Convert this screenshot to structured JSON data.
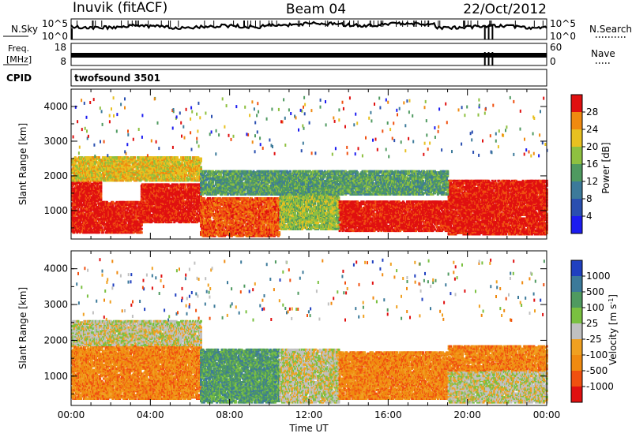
{
  "header": {
    "station": "Inuvik (fitACF)",
    "beam": "Beam 04",
    "date": "22/Oct/2012"
  },
  "panels": {
    "noise": {
      "left_label": "N.Sky",
      "tick_top": "10^5",
      "tick_bottom": "10^0",
      "right_tick_top": "10^5",
      "right_tick_bottom": "10^0",
      "right_label": "N.Search"
    },
    "freq": {
      "left_label_1": "Freq.",
      "left_label_2": "[MHz]",
      "tick_top": "18",
      "tick_bottom": "8",
      "right_tick_top": "60",
      "right_tick_bottom": "0",
      "right_label": "Nave"
    },
    "cpid": {
      "label": "CPID",
      "value": "twofsound 3501"
    }
  },
  "colors": {
    "trace": "#000000",
    "power_scale": [
      "#1c1cf0",
      "#2a4fb0",
      "#3c7a9a",
      "#4f9a60",
      "#8ec040",
      "#e8c020",
      "#f08a10",
      "#f05010",
      "#e01010"
    ],
    "velocity_scale": [
      "#e01010",
      "#f05010",
      "#f08a10",
      "#f0a020",
      "#c0c0c0",
      "#7ac040",
      "#4f9a60",
      "#3c7a9a",
      "#2040c0"
    ]
  },
  "chart_data": [
    {
      "type": "heatmap",
      "name": "power-panel",
      "ylabel": "Slant Range [km]",
      "yticks": [
        "1000",
        "2000",
        "3000",
        "4000"
      ],
      "ylim": [
        180,
        4500
      ],
      "colorbar": {
        "label": "Power [dB]",
        "ticks": [
          "4",
          "8",
          "12",
          "16",
          "20",
          "24",
          "28"
        ],
        "range": [
          0,
          32
        ]
      },
      "bands": [
        {
          "t0": 0.0,
          "t1": 1.5,
          "r0": 400,
          "r1": 1900,
          "level": 8
        },
        {
          "t0": 1.5,
          "t1": 3.5,
          "r0": 400,
          "r1": 1300,
          "level": 8
        },
        {
          "t0": 3.5,
          "t1": 6.5,
          "r0": 700,
          "r1": 1800,
          "level": 8
        },
        {
          "t0": 6.5,
          "t1": 10.5,
          "r0": 300,
          "r1": 1400,
          "level": 7
        },
        {
          "t0": 10.5,
          "t1": 13.5,
          "r0": 500,
          "r1": 1800,
          "level": 4
        },
        {
          "t0": 13.5,
          "t1": 19.0,
          "r0": 450,
          "r1": 1300,
          "level": 8
        },
        {
          "t0": 19.0,
          "t1": 24.0,
          "r0": 350,
          "r1": 1900,
          "level": 8
        },
        {
          "t0": 0.0,
          "t1": 6.5,
          "r0": 1900,
          "r1": 2600,
          "level": 5
        },
        {
          "t0": 6.5,
          "t1": 19.0,
          "r0": 1500,
          "r1": 2200,
          "level": 3
        }
      ]
    },
    {
      "type": "heatmap",
      "name": "velocity-panel",
      "xlabel": "Time UT",
      "ylabel": "Slant Range [km]",
      "xticks": [
        "00:00",
        "04:00",
        "08:00",
        "12:00",
        "16:00",
        "20:00",
        "00:00"
      ],
      "xlim": [
        0,
        24
      ],
      "yticks": [
        "1000",
        "2000",
        "3000",
        "4000"
      ],
      "ylim": [
        180,
        4500
      ],
      "colorbar": {
        "label": "Velocity [m s-1]",
        "ticks": [
          "1000",
          "500",
          "100",
          "25",
          "-25",
          "-100",
          "-500",
          "-1000"
        ]
      },
      "bands": [
        {
          "t0": 0.0,
          "t1": 6.5,
          "r0": 400,
          "r1": 1900,
          "level": 2
        },
        {
          "t0": 6.5,
          "t1": 10.5,
          "r0": 300,
          "r1": 1800,
          "level": 6
        },
        {
          "t0": 10.5,
          "t1": 13.5,
          "r0": 300,
          "r1": 1800,
          "level": 4
        },
        {
          "t0": 13.5,
          "t1": 19.0,
          "r0": 400,
          "r1": 1700,
          "level": 2
        },
        {
          "t0": 19.0,
          "t1": 24.0,
          "r0": 300,
          "r1": 1200,
          "level": 4
        },
        {
          "t0": 19.0,
          "t1": 24.0,
          "r0": 1200,
          "r1": 1900,
          "level": 2
        },
        {
          "t0": 0.0,
          "t1": 6.5,
          "r0": 1900,
          "r1": 2600,
          "level": 4
        }
      ]
    }
  ]
}
